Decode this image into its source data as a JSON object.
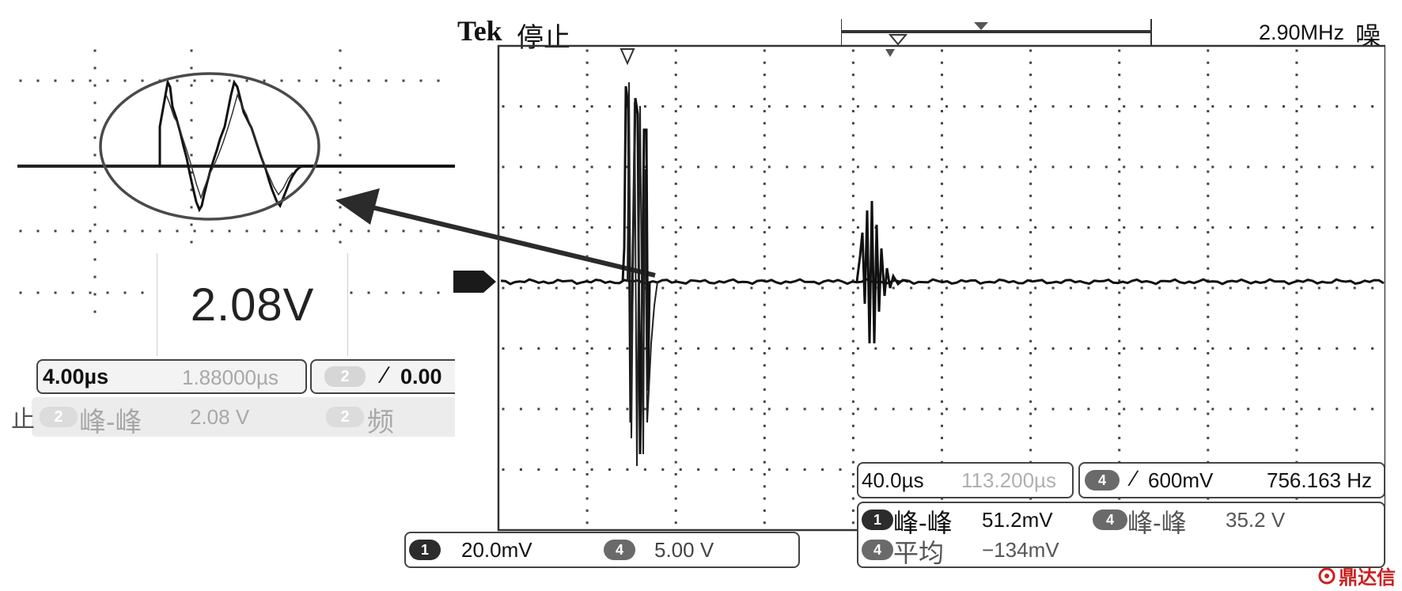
{
  "inset": {
    "voltage_readout": "2.08V",
    "timebase": "4.00µs",
    "trigger_position": "1.88000µs",
    "trigger_channel": "2",
    "trigger_level": "0.00",
    "meas_channel": "2",
    "meas_name": "峰-峰",
    "meas_value": "2.08 V",
    "meas2_channel": "2",
    "meas2_name": "频",
    "edge_char": "止"
  },
  "main": {
    "brand": "Tek",
    "run_state": "停止",
    "frequency": "2.90MHz",
    "noise_label": "噪",
    "channel_marker": "1",
    "timebase": "40.0µs",
    "trigger_position": "113.200µs",
    "trigger_channel": "4",
    "trigger_level": "600mV",
    "trigger_freq": "756.163 Hz",
    "ch1_scale_channel": "1",
    "ch1_scale": "20.0mV",
    "ch4_scale_channel": "4",
    "ch4_scale": "5.00 V",
    "measurements": [
      {
        "channel": "1",
        "name": "峰-峰",
        "value": "51.2mV"
      },
      {
        "channel": "4",
        "name": "峰-峰",
        "value": "35.2 V"
      },
      {
        "channel": "4",
        "name": "平均",
        "value": "−134mV"
      }
    ]
  },
  "watermark": "鼎达信",
  "colors": {
    "trace": "#111111",
    "grid": "#444444",
    "arrow": "#2b2b2b",
    "watermark": "#cc1f1f",
    "pill_dark": "#2c2c2c",
    "pill_gray": "#6a6a6a"
  }
}
